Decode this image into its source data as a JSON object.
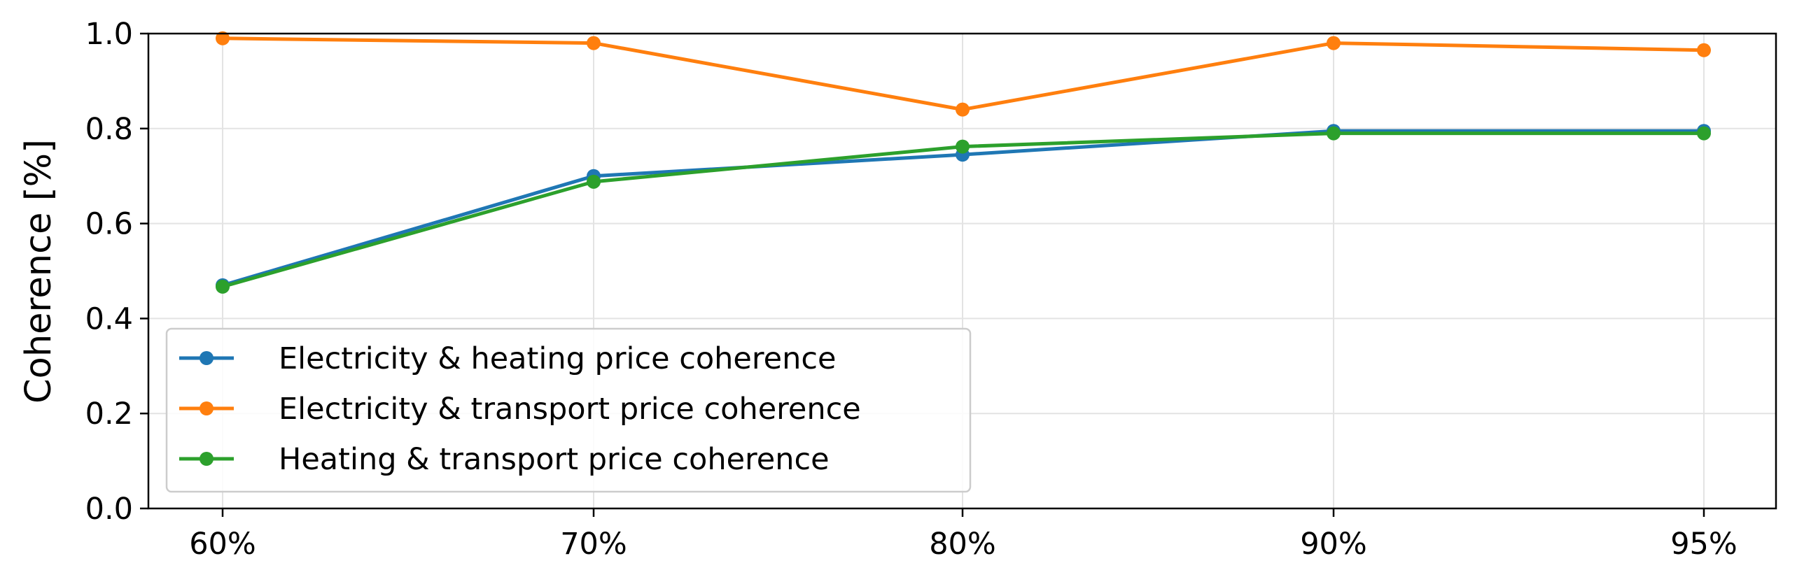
{
  "chart_data": {
    "type": "line",
    "title": "",
    "xlabel": "",
    "ylabel": "Coherence [%]",
    "categories": [
      "60%",
      "70%",
      "80%",
      "90%",
      "95%"
    ],
    "ylim": [
      0.0,
      1.0
    ],
    "yticks": [
      "0.0",
      "0.2",
      "0.4",
      "0.6",
      "0.8",
      "1.0"
    ],
    "grid": true,
    "legend_position": "lower-left",
    "series": [
      {
        "name": "Electricity & heating price coherence",
        "color": "#1f77b4",
        "values": [
          0.47,
          0.7,
          0.745,
          0.795,
          0.795
        ]
      },
      {
        "name": "Electricity & transport price coherence",
        "color": "#ff7f0e",
        "values": [
          0.99,
          0.98,
          0.84,
          0.98,
          0.965
        ]
      },
      {
        "name": "Heating & transport price coherence",
        "color": "#2ca02c",
        "values": [
          0.467,
          0.688,
          0.762,
          0.79,
          0.79
        ]
      }
    ]
  }
}
